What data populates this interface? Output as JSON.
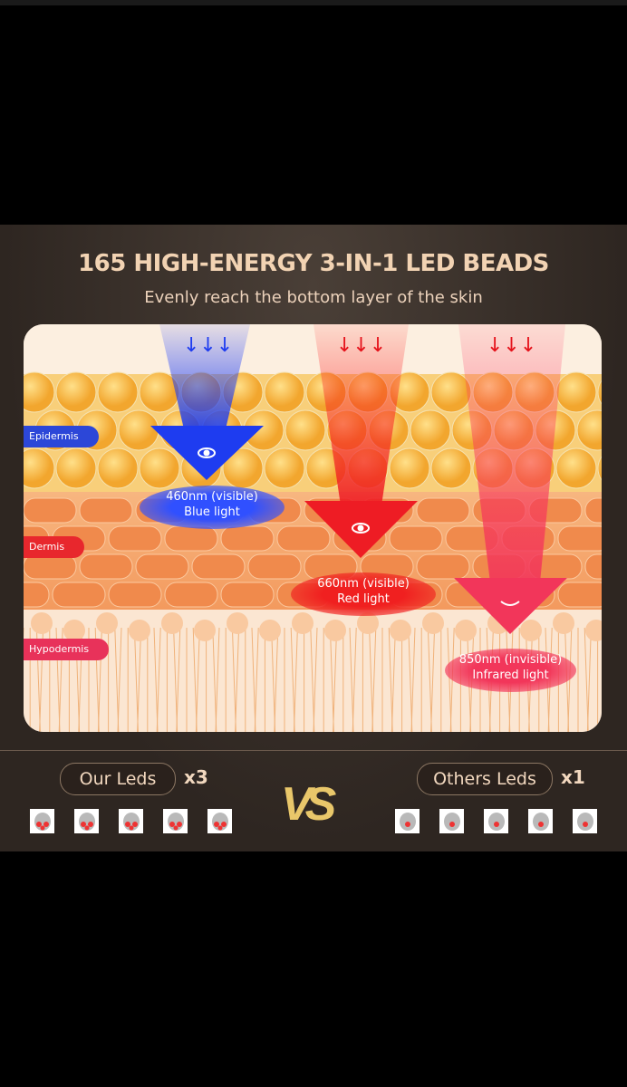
{
  "title": "165 HIGH-ENERGY 3-IN-1 LED BEADS",
  "subtitle": "Evenly reach the bottom layer of the skin",
  "layers": [
    {
      "label": "Epidermis",
      "color": "#2c47d8"
    },
    {
      "label": "Dermis",
      "color": "#e8272d"
    },
    {
      "label": "Hypodermis",
      "color": "#e8325a"
    }
  ],
  "lights": [
    {
      "wavelength": "460nm (visible)",
      "name": "Blue light",
      "color": "#1f3ff0",
      "icon": "eye-open-icon"
    },
    {
      "wavelength": "660nm (visible)",
      "name": "Red light",
      "color": "#ee1c24",
      "icon": "eye-open-icon"
    },
    {
      "wavelength": "850nm (invisible)",
      "name": "Infrared light",
      "color": "#f2365a",
      "icon": "eye-closed-icon"
    }
  ],
  "comparison": {
    "ours": {
      "label": "Our Leds",
      "multiplier": "x3",
      "chips": 5
    },
    "others": {
      "label": "Others Leds",
      "multiplier": "x1",
      "chips": 5
    },
    "vs": "VS",
    "accent": "#e9c76a"
  }
}
